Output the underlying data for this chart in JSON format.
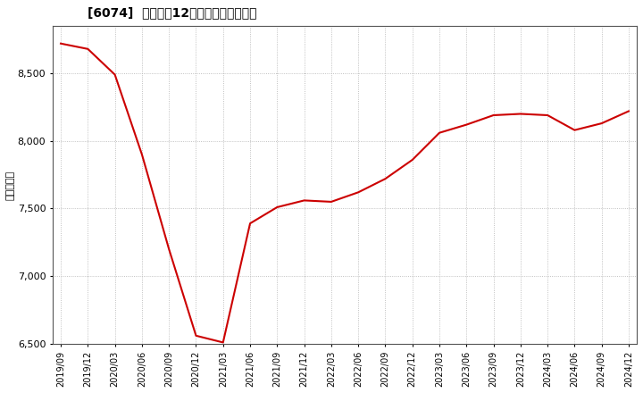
{
  "title": "[6074]  売上高の12か月移動合計の推移",
  "ylabel": "（百万円）",
  "line_color": "#cc0000",
  "background_color": "#ffffff",
  "plot_bg_color": "#ffffff",
  "grid_color": "#b0b0b0",
  "ylim": [
    6500,
    8850
  ],
  "yticks": [
    6500,
    7000,
    7500,
    8000,
    8500
  ],
  "dates": [
    "2019/09",
    "2019/12",
    "2020/03",
    "2020/06",
    "2020/09",
    "2020/12",
    "2021/03",
    "2021/06",
    "2021/09",
    "2021/12",
    "2022/03",
    "2022/06",
    "2022/09",
    "2022/12",
    "2023/03",
    "2023/06",
    "2023/09",
    "2023/12",
    "2024/03",
    "2024/06",
    "2024/09",
    "2024/12"
  ],
  "values": [
    8720,
    8680,
    8490,
    7900,
    7200,
    6560,
    6510,
    7390,
    7510,
    7560,
    7550,
    7620,
    7720,
    7860,
    8060,
    8120,
    8190,
    8200,
    8190,
    8080,
    8130,
    8220
  ]
}
